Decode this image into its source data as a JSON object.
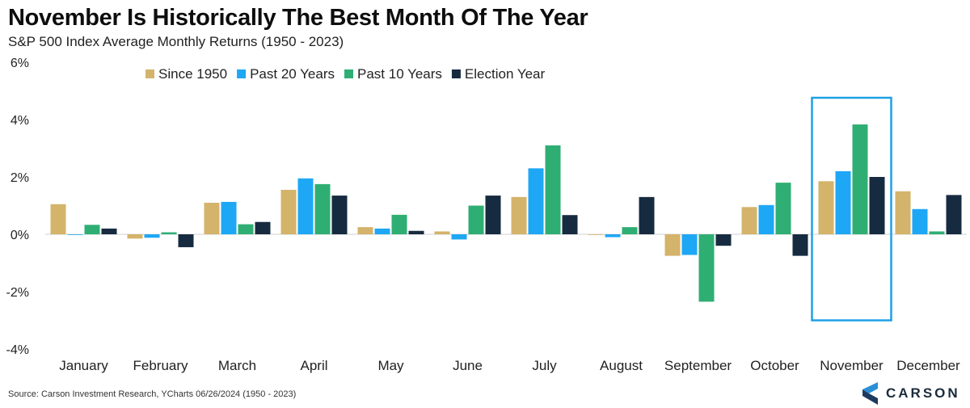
{
  "title": "November Is Historically The Best Month Of The Year",
  "subtitle": "S&P 500 Index Average Monthly Returns (1950 - 2023)",
  "source": "Source: Carson Investment Research, YCharts 06/26/2024 (1950 - 2023)",
  "brand": {
    "name": "CARSON",
    "logo_icon": "carson-chevron-logo",
    "logo_colors": [
      "#2b8fd6",
      "#1f3a5f"
    ]
  },
  "highlight": {
    "category": "November",
    "color": "#1ea0e6"
  },
  "chart_data": {
    "type": "bar",
    "categories": [
      "January",
      "February",
      "March",
      "April",
      "May",
      "June",
      "July",
      "August",
      "September",
      "October",
      "November",
      "December"
    ],
    "ylim": [
      -4,
      6
    ],
    "yticks": [
      -4,
      -2,
      0,
      2,
      4,
      6
    ],
    "ytick_labels": [
      "-4%",
      "-2%",
      "0%",
      "2%",
      "4%",
      "6%"
    ],
    "legend_position": "top",
    "grid": false,
    "series": [
      {
        "name": "Since 1950",
        "color": "#d4b36a",
        "values": [
          1.05,
          -0.15,
          1.1,
          1.55,
          0.25,
          0.1,
          1.3,
          0.0,
          -0.75,
          0.95,
          1.85,
          1.5
        ]
      },
      {
        "name": "Past 20 Years",
        "color": "#1ea7f5",
        "values": [
          0.0,
          -0.12,
          1.13,
          1.95,
          0.2,
          -0.18,
          2.3,
          -0.1,
          -0.72,
          1.02,
          2.2,
          0.88
        ]
      },
      {
        "name": "Past 10 Years",
        "color": "#2fae74",
        "values": [
          0.33,
          0.07,
          0.35,
          1.75,
          0.68,
          1.0,
          3.1,
          0.25,
          -2.35,
          1.8,
          3.83,
          0.1
        ]
      },
      {
        "name": "Election Year",
        "color": "#172b40",
        "values": [
          0.2,
          -0.45,
          0.43,
          1.35,
          0.12,
          1.35,
          0.67,
          1.3,
          -0.4,
          -0.75,
          2.0,
          1.37
        ]
      }
    ]
  }
}
